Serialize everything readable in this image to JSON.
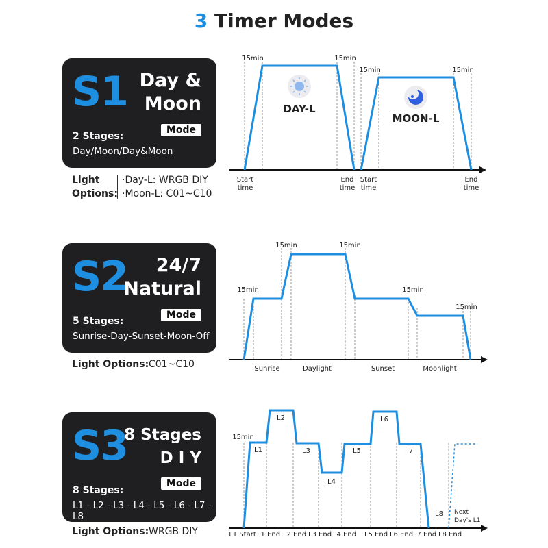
{
  "title": {
    "number": "3",
    "text": " Timer Modes"
  },
  "colors": {
    "accent": "#1e8ee0",
    "card": "#1f1f22",
    "line": "#1e8ee0"
  },
  "s1": {
    "code": "S1",
    "name1": "Day &",
    "name2": "Moon",
    "mode": "Mode",
    "stages": "2 Stages:",
    "stage_list": "Day/Moon/Day&Moon",
    "options_label1": "Light",
    "options_label2": "Options:",
    "option1": "·Day-L: WRGB DIY",
    "option2": "·Moon-L: C01~C10",
    "chart": {
      "min_labels": [
        "15min",
        "15min",
        "15min",
        "15min"
      ],
      "day_label": "DAY-L",
      "moon_label": "MOON-L",
      "sun_icon": "sun-icon",
      "moon_icon": "moon-icon",
      "axis_labels": [
        [
          "Start",
          "time"
        ],
        [
          "End",
          "time"
        ],
        [
          "Start",
          "time"
        ],
        [
          "End",
          "time"
        ]
      ]
    }
  },
  "s2": {
    "code": "S2",
    "name1": "24/7",
    "name2": "Natural",
    "mode": "Mode",
    "stages": "5 Stages:",
    "stage_list": "Sunrise-Day-Sunset-Moon-Off",
    "options_label": "Light Options:",
    "option": "C01~C10",
    "chart": {
      "min_labels": [
        "15min",
        "15min",
        "15min",
        "15min",
        "15min"
      ],
      "axis_labels": [
        "Sunrise",
        "Daylight",
        "Sunset",
        "Moonlight"
      ]
    }
  },
  "s3": {
    "code": "S3",
    "name1": "8 Stages",
    "name2": "D I Y",
    "mode": "Mode",
    "stages": "8 Stages:",
    "stage_list": "L1 - L2 - L3 - L4 - L5 - L6 - L7 - L8",
    "options_label": "Light Options:",
    "option": "WRGB DIY",
    "chart": {
      "min_label": "15min",
      "level_labels": [
        "L1",
        "L2",
        "L3",
        "L4",
        "L5",
        "L6",
        "L7",
        "L8"
      ],
      "next_label": [
        "Next",
        "Day's L1"
      ],
      "axis_labels": [
        "L1 Start",
        "L1 End",
        "L2 End",
        "L3 End",
        "L4 End",
        "L5 End",
        "L6 End",
        "L7 End",
        "L8 End"
      ]
    }
  }
}
